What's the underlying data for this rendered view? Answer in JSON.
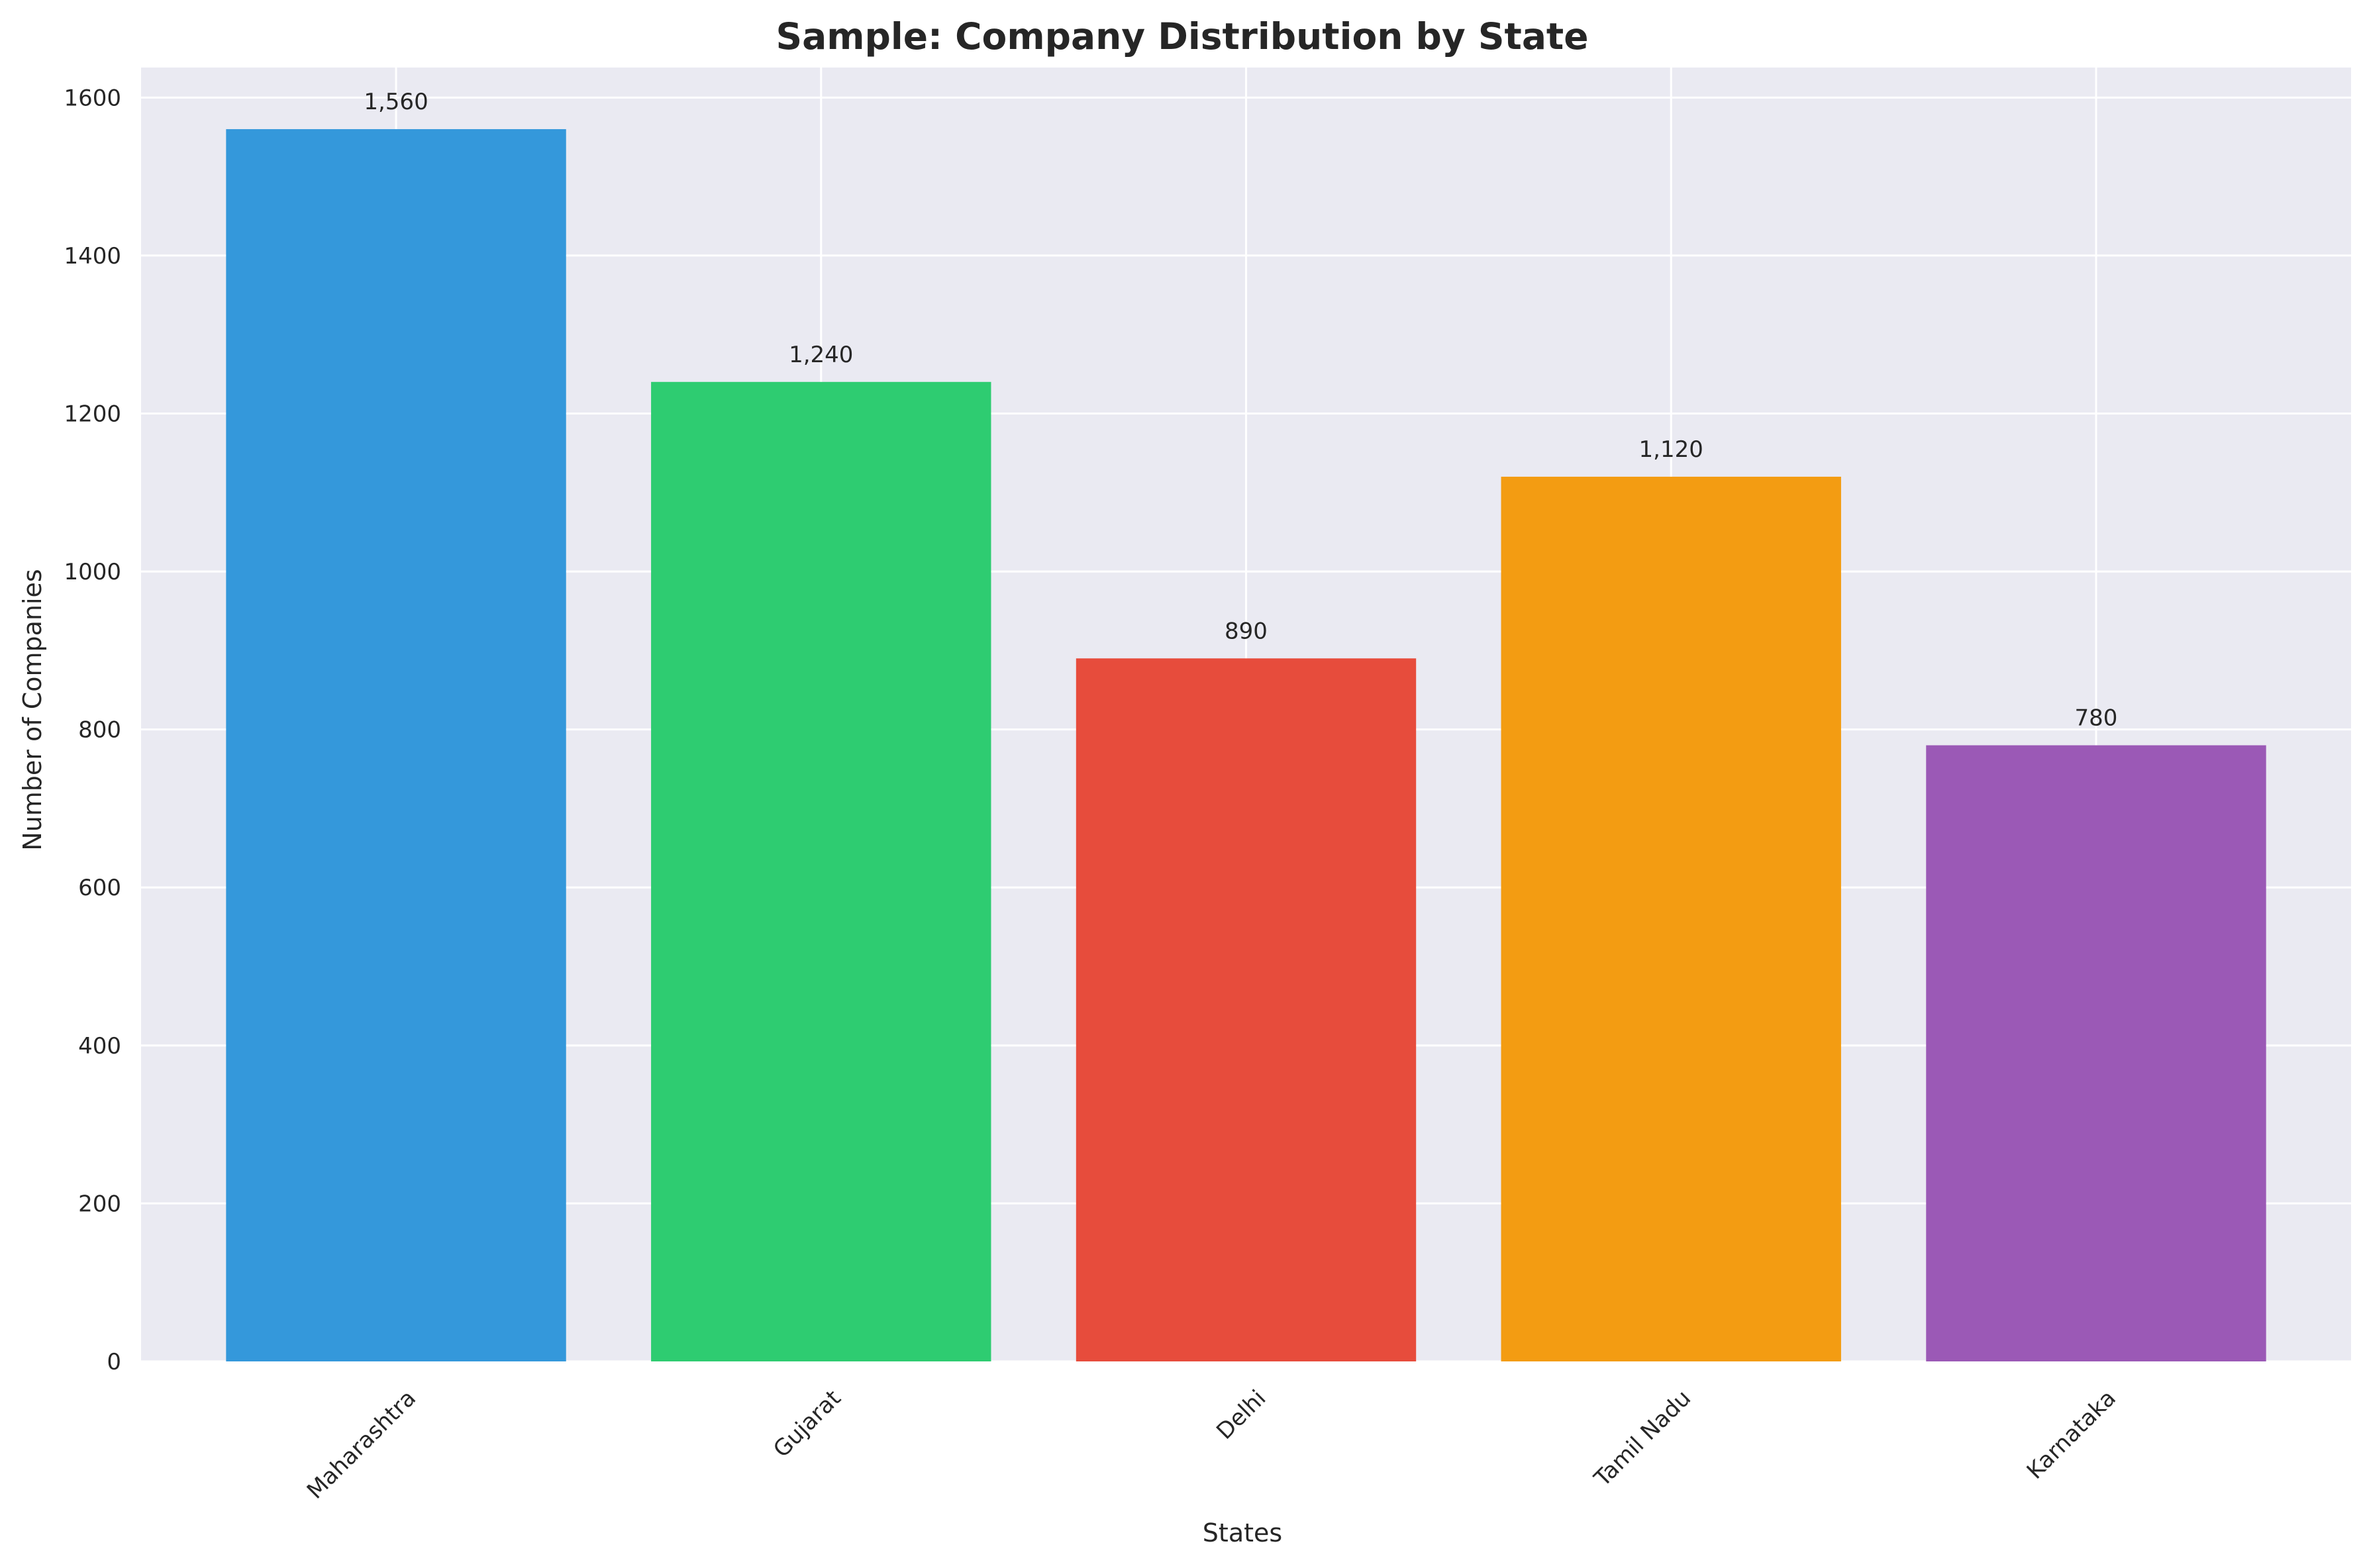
{
  "chart_data": {
    "type": "bar",
    "title": "Sample: Company Distribution by State",
    "xlabel": "States",
    "ylabel": "Number of Companies",
    "categories": [
      "Maharashtra",
      "Gujarat",
      "Delhi",
      "Tamil Nadu",
      "Karnataka"
    ],
    "values": [
      1560,
      1240,
      890,
      1120,
      780
    ],
    "value_labels": [
      "1,560",
      "1,240",
      "890",
      "1,120",
      "780"
    ],
    "colors": [
      "#3498db",
      "#2ecc71",
      "#e74c3c",
      "#f39c12",
      "#9b59b6"
    ],
    "ylim": [
      0,
      1638
    ],
    "yticks": [
      0,
      200,
      400,
      600,
      800,
      1000,
      1200,
      1400,
      1600
    ],
    "grid": true,
    "background_color": "#eaeaf2",
    "grid_color": "#ffffff"
  }
}
